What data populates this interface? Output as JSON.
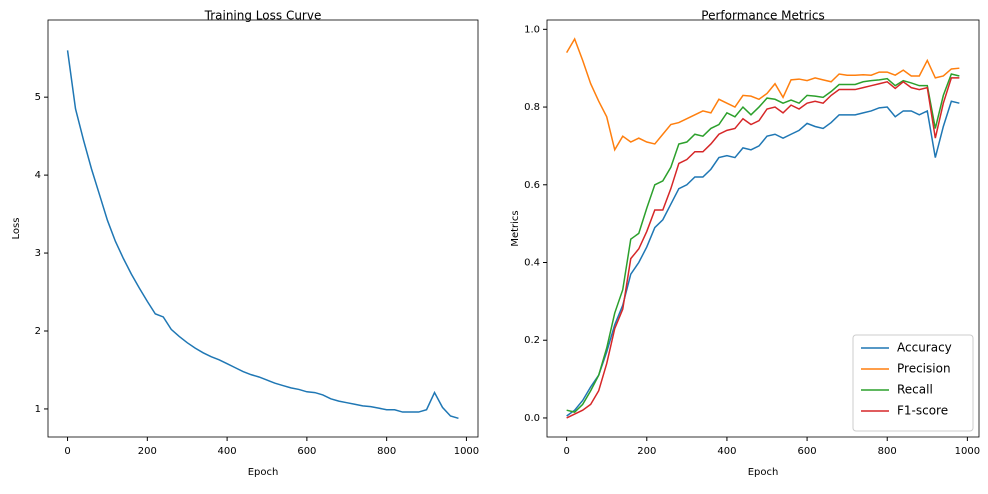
{
  "chart_data": [
    {
      "type": "line",
      "title": "Training Loss Curve",
      "xlabel": "Epoch",
      "ylabel": "Loss",
      "x": [
        0,
        20,
        40,
        60,
        80,
        100,
        120,
        140,
        160,
        180,
        200,
        220,
        240,
        260,
        280,
        300,
        320,
        340,
        360,
        380,
        400,
        420,
        440,
        460,
        480,
        500,
        520,
        540,
        560,
        580,
        600,
        620,
        640,
        660,
        680,
        700,
        720,
        740,
        760,
        780,
        800,
        820,
        840,
        860,
        880,
        900,
        920,
        940,
        960,
        980
      ],
      "series": [
        {
          "name": "Loss",
          "color": "#1f77b4",
          "values": [
            5.6,
            4.85,
            4.45,
            4.08,
            3.75,
            3.42,
            3.15,
            2.93,
            2.73,
            2.55,
            2.38,
            2.22,
            2.18,
            2.02,
            1.93,
            1.85,
            1.78,
            1.72,
            1.67,
            1.63,
            1.58,
            1.53,
            1.48,
            1.44,
            1.41,
            1.37,
            1.33,
            1.3,
            1.27,
            1.25,
            1.22,
            1.21,
            1.18,
            1.13,
            1.1,
            1.08,
            1.06,
            1.04,
            1.03,
            1.01,
            0.99,
            0.99,
            0.96,
            0.96,
            0.96,
            0.99,
            1.21,
            1.02,
            0.91,
            0.88
          ]
        }
      ],
      "xlim": [
        -49,
        1029
      ],
      "ylim": [
        0.64,
        5.99
      ],
      "xticks": [
        0,
        200,
        400,
        600,
        800,
        1000
      ],
      "yticks": [
        1,
        2,
        3,
        4,
        5
      ]
    },
    {
      "type": "line",
      "title": "Performance Metrics",
      "xlabel": "Epoch",
      "ylabel": "Metrics",
      "x": [
        0,
        20,
        40,
        60,
        80,
        100,
        120,
        140,
        160,
        180,
        200,
        220,
        240,
        260,
        280,
        300,
        320,
        340,
        360,
        380,
        400,
        420,
        440,
        460,
        480,
        500,
        520,
        540,
        560,
        580,
        600,
        620,
        640,
        660,
        680,
        700,
        720,
        740,
        760,
        780,
        800,
        820,
        840,
        860,
        880,
        900,
        920,
        940,
        960,
        980
      ],
      "series": [
        {
          "name": "Accuracy",
          "color": "#1f77b4",
          "values": [
            0.005,
            0.02,
            0.045,
            0.08,
            0.11,
            0.17,
            0.24,
            0.29,
            0.37,
            0.4,
            0.44,
            0.49,
            0.51,
            0.55,
            0.59,
            0.6,
            0.62,
            0.62,
            0.64,
            0.67,
            0.675,
            0.67,
            0.695,
            0.69,
            0.7,
            0.725,
            0.73,
            0.72,
            0.73,
            0.74,
            0.758,
            0.75,
            0.745,
            0.76,
            0.78,
            0.78,
            0.78,
            0.785,
            0.79,
            0.798,
            0.8,
            0.775,
            0.79,
            0.79,
            0.78,
            0.79,
            0.67,
            0.75,
            0.815,
            0.81
          ]
        },
        {
          "name": "Precision",
          "color": "#ff7f0e",
          "values": [
            0.94,
            0.975,
            0.92,
            0.86,
            0.815,
            0.775,
            0.69,
            0.725,
            0.71,
            0.72,
            0.71,
            0.705,
            0.73,
            0.755,
            0.76,
            0.77,
            0.78,
            0.79,
            0.785,
            0.82,
            0.81,
            0.8,
            0.83,
            0.828,
            0.82,
            0.835,
            0.86,
            0.825,
            0.87,
            0.872,
            0.868,
            0.875,
            0.87,
            0.865,
            0.885,
            0.882,
            0.882,
            0.883,
            0.882,
            0.89,
            0.89,
            0.882,
            0.895,
            0.88,
            0.88,
            0.92,
            0.875,
            0.88,
            0.898,
            0.9
          ]
        },
        {
          "name": "Recall",
          "color": "#2ca02c",
          "values": [
            0.02,
            0.015,
            0.035,
            0.07,
            0.11,
            0.18,
            0.27,
            0.33,
            0.46,
            0.475,
            0.54,
            0.6,
            0.61,
            0.645,
            0.705,
            0.71,
            0.73,
            0.725,
            0.745,
            0.755,
            0.785,
            0.775,
            0.8,
            0.78,
            0.8,
            0.823,
            0.82,
            0.81,
            0.818,
            0.81,
            0.83,
            0.828,
            0.825,
            0.84,
            0.858,
            0.858,
            0.858,
            0.865,
            0.868,
            0.87,
            0.873,
            0.855,
            0.868,
            0.862,
            0.855,
            0.855,
            0.745,
            0.83,
            0.885,
            0.88
          ]
        },
        {
          "name": "F1-score",
          "color": "#d62728",
          "values": [
            0.0,
            0.01,
            0.02,
            0.035,
            0.07,
            0.14,
            0.23,
            0.28,
            0.41,
            0.435,
            0.48,
            0.535,
            0.535,
            0.59,
            0.655,
            0.665,
            0.685,
            0.685,
            0.705,
            0.73,
            0.74,
            0.745,
            0.77,
            0.755,
            0.765,
            0.795,
            0.8,
            0.785,
            0.805,
            0.795,
            0.81,
            0.815,
            0.81,
            0.83,
            0.845,
            0.845,
            0.845,
            0.85,
            0.855,
            0.86,
            0.865,
            0.848,
            0.865,
            0.85,
            0.845,
            0.85,
            0.72,
            0.81,
            0.875,
            0.875
          ]
        }
      ],
      "xlim": [
        -49,
        1029
      ],
      "ylim": [
        -0.049,
        1.024
      ],
      "xticks": [
        0,
        200,
        400,
        600,
        800,
        1000
      ],
      "yticks": [
        {
          "value": 0,
          "label": "0.0"
        },
        0.2,
        0.4,
        0.6,
        0.8,
        {
          "value": 1,
          "label": "1.0"
        }
      ],
      "legend": "lower right"
    }
  ]
}
